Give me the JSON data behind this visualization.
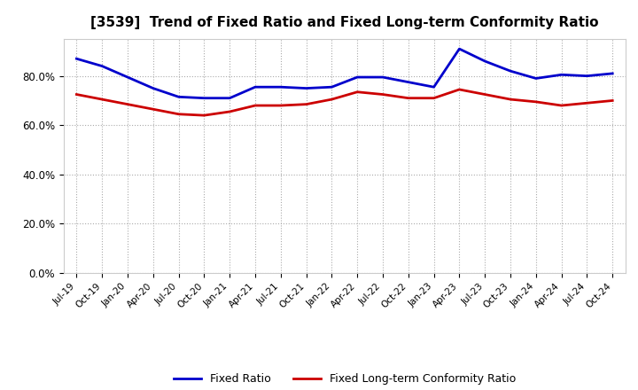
{
  "title": "[3539]  Trend of Fixed Ratio and Fixed Long-term Conformity Ratio",
  "labels": [
    "Jul-19",
    "Oct-19",
    "Jan-20",
    "Apr-20",
    "Jul-20",
    "Oct-20",
    "Jan-21",
    "Apr-21",
    "Jul-21",
    "Oct-21",
    "Jan-22",
    "Apr-22",
    "Jul-22",
    "Oct-22",
    "Jan-23",
    "Apr-23",
    "Jul-23",
    "Oct-23",
    "Jan-24",
    "Apr-24",
    "Jul-24",
    "Oct-24"
  ],
  "fixed_ratio": [
    87.0,
    84.0,
    79.5,
    75.0,
    71.5,
    71.0,
    71.0,
    75.5,
    75.5,
    75.0,
    75.5,
    79.5,
    79.5,
    77.5,
    75.5,
    91.0,
    86.0,
    82.0,
    79.0,
    80.5,
    80.0,
    81.0
  ],
  "fixed_lt_ratio": [
    72.5,
    70.5,
    68.5,
    66.5,
    64.5,
    64.0,
    65.5,
    68.0,
    68.0,
    68.5,
    70.5,
    73.5,
    72.5,
    71.0,
    71.0,
    74.5,
    72.5,
    70.5,
    69.5,
    68.0,
    69.0,
    70.0
  ],
  "fixed_ratio_color": "#0000cc",
  "fixed_lt_ratio_color": "#cc0000",
  "ylim": [
    0,
    95
  ],
  "yticks": [
    0,
    20,
    40,
    60,
    80
  ],
  "background_color": "#ffffff",
  "grid_color": "#aaaaaa",
  "legend_fixed_ratio": "Fixed Ratio",
  "legend_fixed_lt_ratio": "Fixed Long-term Conformity Ratio"
}
